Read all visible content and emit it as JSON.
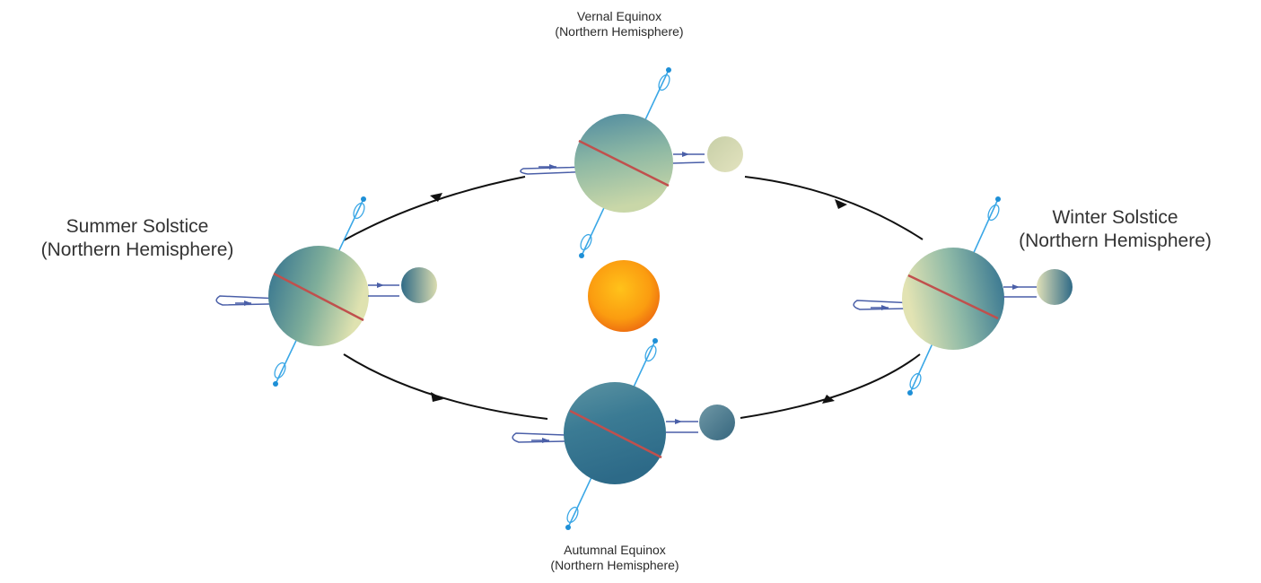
{
  "labels": {
    "vernal": {
      "line1": "Vernal Equinox",
      "line2": "(Northern Hemisphere)"
    },
    "summer": {
      "line1": "Summer Solstice",
      "line2": "(Northern Hemisphere)"
    },
    "winter": {
      "line1": "Winter Solstice",
      "line2": "(Northern Hemisphere)"
    },
    "autumnal": {
      "line1": "Autumnal Equinox",
      "line2": "(Northern Hemisphere)"
    }
  },
  "icons": {
    "sun": "sun-icon",
    "earth": "earth-icon",
    "moon": "moon-icon",
    "orbit": "orbit-arrow-icon",
    "axis": "rotation-axis-icon"
  },
  "colors": {
    "sun_core": "#ffb400",
    "sun_edge": "#f07a10",
    "earth_dark": "#2e6f8c",
    "earth_light": "#cfd9a6",
    "equator": "#c0504d",
    "axis": "#3aa7e6",
    "spin_arrow": "#4a5fa8",
    "orbit_arrow": "#111111",
    "moon_dark": "#3f6f86",
    "moon_light": "#d9dcb0"
  }
}
